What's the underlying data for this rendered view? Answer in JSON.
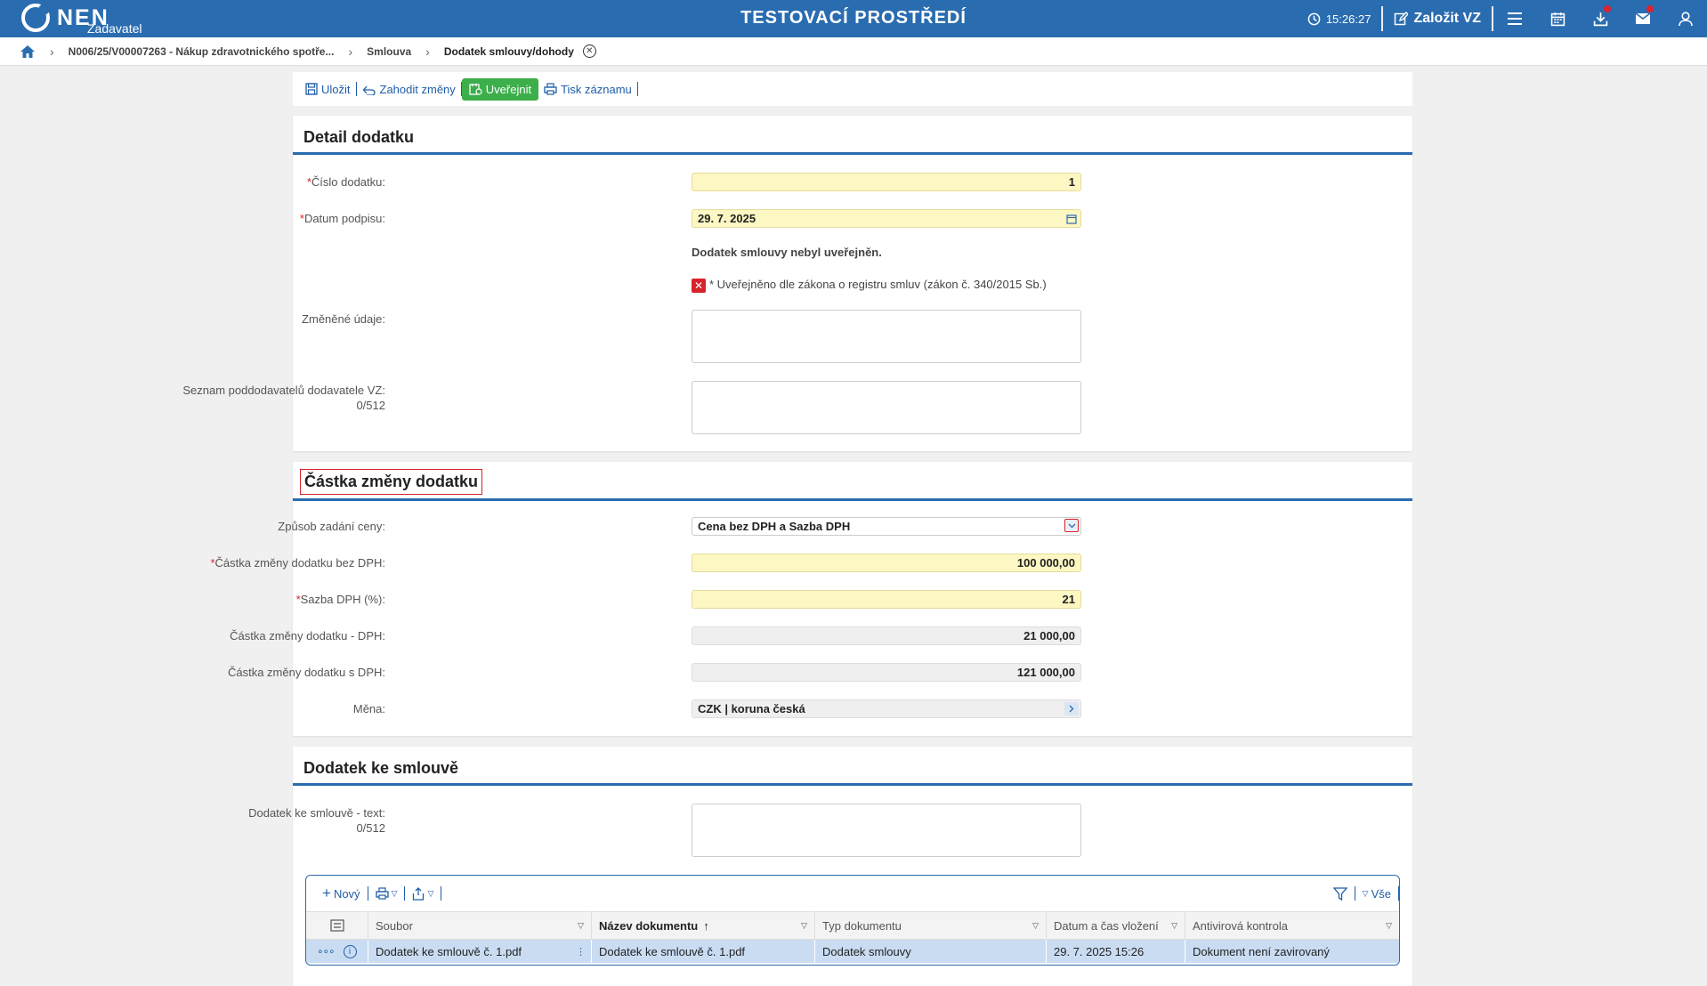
{
  "topbar": {
    "logo_text": "NEN",
    "logo_sub": "Zadavatel",
    "env_title": "TESTOVACÍ PROSTŘEDÍ",
    "clock": "15:26:27",
    "create_label": "Založit VZ"
  },
  "breadcrumb": {
    "items": [
      "N006/25/V00007263 - Nákup zdravotnického spotře...",
      "Smlouva"
    ],
    "current": "Dodatek smlouvy/dohody"
  },
  "toolbar": {
    "save": "Uložit",
    "discard": "Zahodit změny",
    "publish": "Uveřejnit",
    "print": "Tisk záznamu"
  },
  "detail": {
    "title": "Detail dodatku",
    "number_label": "Číslo dodatku:",
    "number_value": "1",
    "date_label": "Datum podpisu:",
    "date_value": "29. 7. 2025",
    "not_published_note": "Dodatek smlouvy nebyl uveřejněn.",
    "register_note": "* Uveřejněno dle zákona o registru smluv (zákon č. 340/2015 Sb.)",
    "changed_label": "Změněné údaje:",
    "subcontractors_label": "Seznam poddodavatelů dodavatele VZ:",
    "subcontractors_count": "0/512"
  },
  "amount": {
    "title": "Částka změny dodatku",
    "price_mode_label": "Způsob zadání ceny:",
    "price_mode_value": "Cena bez DPH a Sazba DPH",
    "net_label": "Částka změny dodatku bez DPH:",
    "net_value": "100 000,00",
    "vat_rate_label": "Sazba DPH (%):",
    "vat_rate_value": "21",
    "vat_label": "Částka změny dodatku - DPH:",
    "vat_value": "21 000,00",
    "gross_label": "Částka změny dodatku s DPH:",
    "gross_value": "121 000,00",
    "currency_label": "Měna:",
    "currency_value": "CZK | koruna česká"
  },
  "appendix": {
    "title": "Dodatek ke smlouvě",
    "text_label": "Dodatek ke smlouvě - text:",
    "text_count": "0/512",
    "grid": {
      "new_label": "Nový",
      "all_label": "Vše",
      "columns": [
        "Soubor",
        "Název dokumentu",
        "Typ dokumentu",
        "Datum a čas vložení",
        "Antivirová kontrola"
      ],
      "row": [
        "Dodatek ke smlouvě č. 1.pdf",
        "Dodatek ke smlouvě č. 1.pdf",
        "Dodatek smlouvy",
        "29. 7. 2025 15:26",
        "Dokument není zavirovaný"
      ]
    }
  },
  "colors": {
    "brand": "#2a6cb0",
    "publish": "#3cae4a",
    "required": "#d8232a",
    "required_bg": "#fdf7c3",
    "selected_row": "#c9dcf2"
  }
}
